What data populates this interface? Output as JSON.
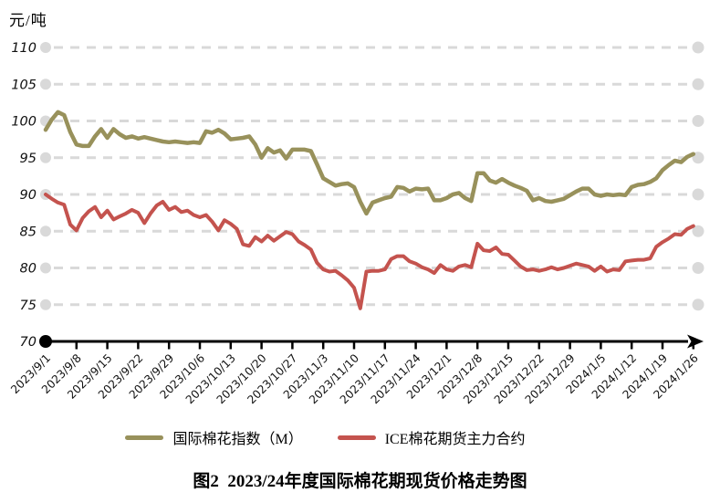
{
  "page": {
    "background": "#ffffff"
  },
  "labels": {
    "unit": "元/吨",
    "title": "图2  2023/24年度国际棉花期现货价格走势图"
  },
  "colors": {
    "m_index_line": "#98915B",
    "ice_futures_line": "#C4534E",
    "gridline": "#D9D9D9",
    "axis": "#000000",
    "text": "#000000"
  },
  "chart_data": {
    "type": "line",
    "title": "图2 2023/24年度国际棉花期现货价格走势图",
    "xlabel": "",
    "ylabel": "元/吨",
    "ylim": [
      70,
      110
    ],
    "y_ticks": [
      70,
      75,
      80,
      85,
      90,
      95,
      100,
      105,
      110
    ],
    "grid": "horizontal-dashed-with-end-dots",
    "legend_position": "bottom",
    "x_tick_labels": [
      "2023/9/1",
      "2023/9/8",
      "2023/9/15",
      "2023/9/22",
      "2023/9/29",
      "2023/10/6",
      "2023/10/13",
      "2023/10/20",
      "2023/10/27",
      "2023/11/3",
      "2023/11/10",
      "2023/11/17",
      "2023/11/24",
      "2023/12/1",
      "2023/12/8",
      "2023/12/15",
      "2023/12/22",
      "2023/12/29",
      "2024/1/5",
      "2024/1/12",
      "2024/1/19",
      "2024/1/26"
    ],
    "points_per_tick_interval": 5,
    "series": [
      {
        "name": "国际棉花指数（M）",
        "color": "#98915B",
        "values": [
          98.8,
          100.2,
          101.2,
          100.8,
          98.5,
          96.8,
          96.6,
          96.6,
          97.9,
          98.9,
          97.7,
          98.9,
          98.2,
          97.7,
          97.9,
          97.6,
          97.8,
          97.6,
          97.4,
          97.2,
          97.1,
          97.2,
          97.1,
          97.0,
          97.1,
          97.0,
          98.6,
          98.4,
          98.8,
          98.3,
          97.5,
          97.6,
          97.7,
          97.9,
          96.8,
          95.0,
          96.3,
          95.7,
          96.0,
          94.9,
          96.1,
          96.1,
          96.1,
          95.9,
          94.1,
          92.2,
          91.7,
          91.2,
          91.4,
          91.5,
          91.0,
          89.0,
          87.4,
          88.9,
          89.2,
          89.5,
          89.7,
          91.0,
          90.9,
          90.4,
          90.8,
          90.7,
          90.8,
          89.2,
          89.2,
          89.5,
          90.0,
          90.2,
          89.5,
          89.1,
          92.9,
          92.9,
          91.9,
          91.6,
          92.1,
          91.6,
          91.2,
          90.9,
          90.5,
          89.2,
          89.5,
          89.1,
          89.0,
          89.2,
          89.4,
          89.9,
          90.4,
          90.8,
          90.8,
          90.0,
          89.8,
          90.0,
          89.9,
          90.0,
          89.9,
          91.0,
          91.3,
          91.4,
          91.7,
          92.2,
          93.3,
          94.0,
          94.6,
          94.4,
          95.1,
          95.5
        ]
      },
      {
        "name": "ICE棉花期货主力合约",
        "color": "#C4534E",
        "values": [
          90.0,
          89.4,
          88.9,
          88.6,
          85.9,
          85.1,
          86.8,
          87.7,
          88.3,
          86.9,
          87.8,
          86.6,
          87.0,
          87.4,
          87.9,
          87.5,
          86.1,
          87.4,
          88.5,
          89.0,
          87.9,
          88.3,
          87.6,
          87.8,
          87.2,
          86.9,
          87.2,
          86.3,
          85.1,
          86.5,
          86.0,
          85.3,
          83.2,
          83.0,
          84.2,
          83.6,
          84.4,
          83.7,
          84.3,
          84.9,
          84.6,
          83.6,
          83.1,
          82.5,
          80.7,
          79.8,
          79.5,
          79.6,
          79.0,
          78.3,
          77.3,
          74.5,
          79.5,
          79.6,
          79.6,
          79.8,
          81.2,
          81.6,
          81.6,
          80.9,
          80.6,
          80.1,
          79.8,
          79.3,
          80.4,
          79.8,
          79.6,
          80.2,
          80.4,
          80.1,
          83.3,
          82.4,
          82.3,
          82.8,
          81.9,
          81.8,
          81.0,
          80.2,
          79.7,
          79.8,
          79.6,
          79.8,
          80.1,
          79.8,
          80.0,
          80.3,
          80.6,
          80.4,
          80.2,
          79.6,
          80.2,
          79.5,
          79.8,
          79.7,
          80.9,
          81.0,
          81.1,
          81.1,
          81.3,
          82.9,
          83.5,
          84.0,
          84.6,
          84.5,
          85.3,
          85.7
        ]
      }
    ]
  }
}
